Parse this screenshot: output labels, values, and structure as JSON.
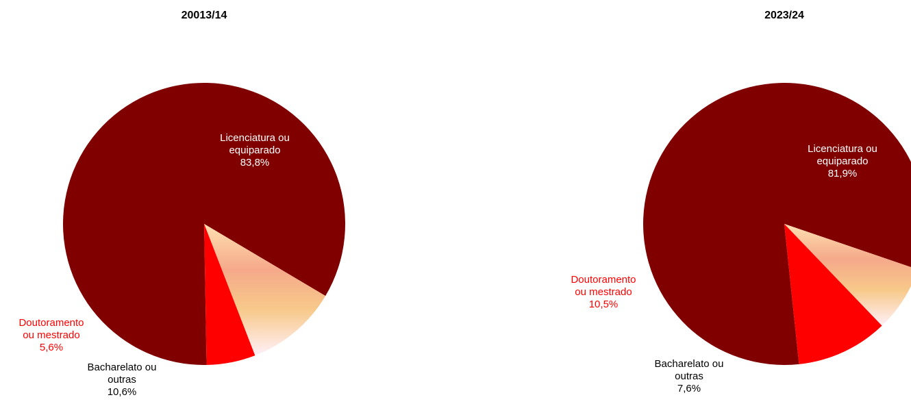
{
  "chart_data": [
    {
      "type": "pie",
      "title": "20013/14",
      "slices": [
        {
          "label": [
            "Licenciatura ou",
            "equiparado",
            "83,8%"
          ],
          "value": 83.8,
          "color": "#800000",
          "label_color": "#ffffff"
        },
        {
          "label": [
            "Bacharelato ou",
            "outras",
            "10,6%"
          ],
          "value": 10.6,
          "color": "gradient",
          "label_color": "#000000"
        },
        {
          "label": [
            "Doutoramento",
            "ou mestrado",
            "5,6%"
          ],
          "value": 5.6,
          "color": "#ff0000",
          "label_color": "#ff0000"
        }
      ]
    },
    {
      "type": "pie",
      "title": "2023/24",
      "slices": [
        {
          "label": [
            "Licenciatura ou",
            "equiparado",
            "81,9%"
          ],
          "value": 81.9,
          "color": "#800000",
          "label_color": "#ffffff"
        },
        {
          "label": [
            "Bacharelato ou",
            "outras",
            "7,6%"
          ],
          "value": 7.6,
          "color": "gradient",
          "label_color": "#000000"
        },
        {
          "label": [
            "Doutoramento",
            "ou mestrado",
            "10,5%"
          ],
          "value": 10.5,
          "color": "#ff0000",
          "label_color": "#ff0000"
        }
      ]
    }
  ]
}
